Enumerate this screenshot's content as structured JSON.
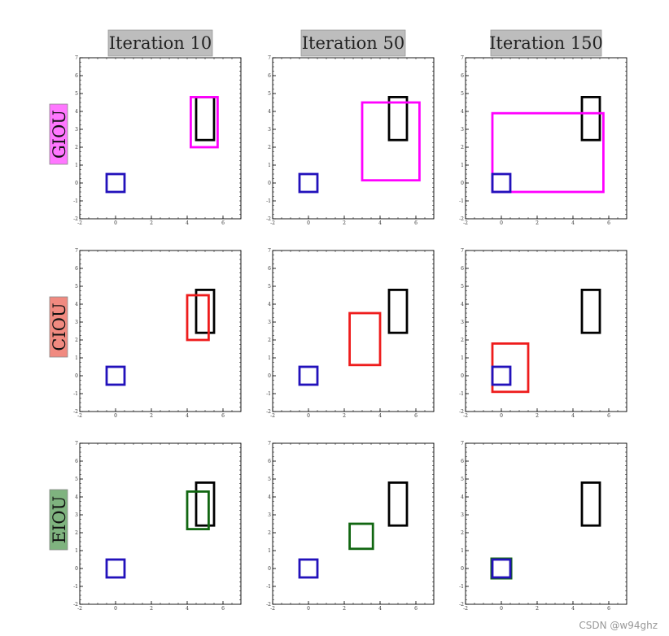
{
  "chart_data": {
    "type": "grid-of-box-plots",
    "xlim": [
      -2,
      7
    ],
    "ylim": [
      -2,
      7
    ],
    "xticks": [
      -2,
      0,
      2,
      4,
      6
    ],
    "yticks": [
      -2,
      -1,
      0,
      1,
      2,
      3,
      4,
      5,
      6,
      7
    ],
    "columns": [
      "Iteration 10",
      "Iteration 50",
      "Iteration 150"
    ],
    "rows": [
      {
        "label": "GIOU",
        "label_bg": "#ff77ff",
        "pred_color": "#ff00ff",
        "preds": [
          {
            "x0": 4.2,
            "y0": 2.0,
            "x1": 5.7,
            "y1": 4.8
          },
          {
            "x0": 3.0,
            "y0": 0.15,
            "x1": 6.2,
            "y1": 4.5
          },
          {
            "x0": -0.5,
            "y0": -0.5,
            "x1": 5.7,
            "y1": 3.9
          }
        ]
      },
      {
        "label": "CIOU",
        "label_bg": "#f08a80",
        "pred_color": "#ee1c1c",
        "preds": [
          {
            "x0": 4.0,
            "y0": 2.0,
            "x1": 5.2,
            "y1": 4.5
          },
          {
            "x0": 2.3,
            "y0": 0.6,
            "x1": 4.0,
            "y1": 3.5
          },
          {
            "x0": -0.5,
            "y0": -0.9,
            "x1": 1.5,
            "y1": 1.8
          }
        ]
      },
      {
        "label": "EIOU",
        "label_bg": "#7fb37f",
        "pred_color": "#116611",
        "preds": [
          {
            "x0": 4.0,
            "y0": 2.2,
            "x1": 5.2,
            "y1": 4.3
          },
          {
            "x0": 2.3,
            "y0": 1.1,
            "x1": 3.6,
            "y1": 2.5
          },
          {
            "x0": -0.55,
            "y0": -0.55,
            "x1": 0.55,
            "y1": 0.55
          }
        ]
      }
    ],
    "target_box": {
      "x0": 4.5,
      "y0": 2.4,
      "x1": 5.5,
      "y1": 4.8,
      "color": "#000000"
    },
    "anchor_box": {
      "x0": -0.5,
      "y0": -0.5,
      "x1": 0.5,
      "y1": 0.5,
      "color": "#2211bb"
    }
  },
  "colors": {
    "title_bg": "#bdbdbd"
  },
  "watermark": "CSDN @w94ghz"
}
